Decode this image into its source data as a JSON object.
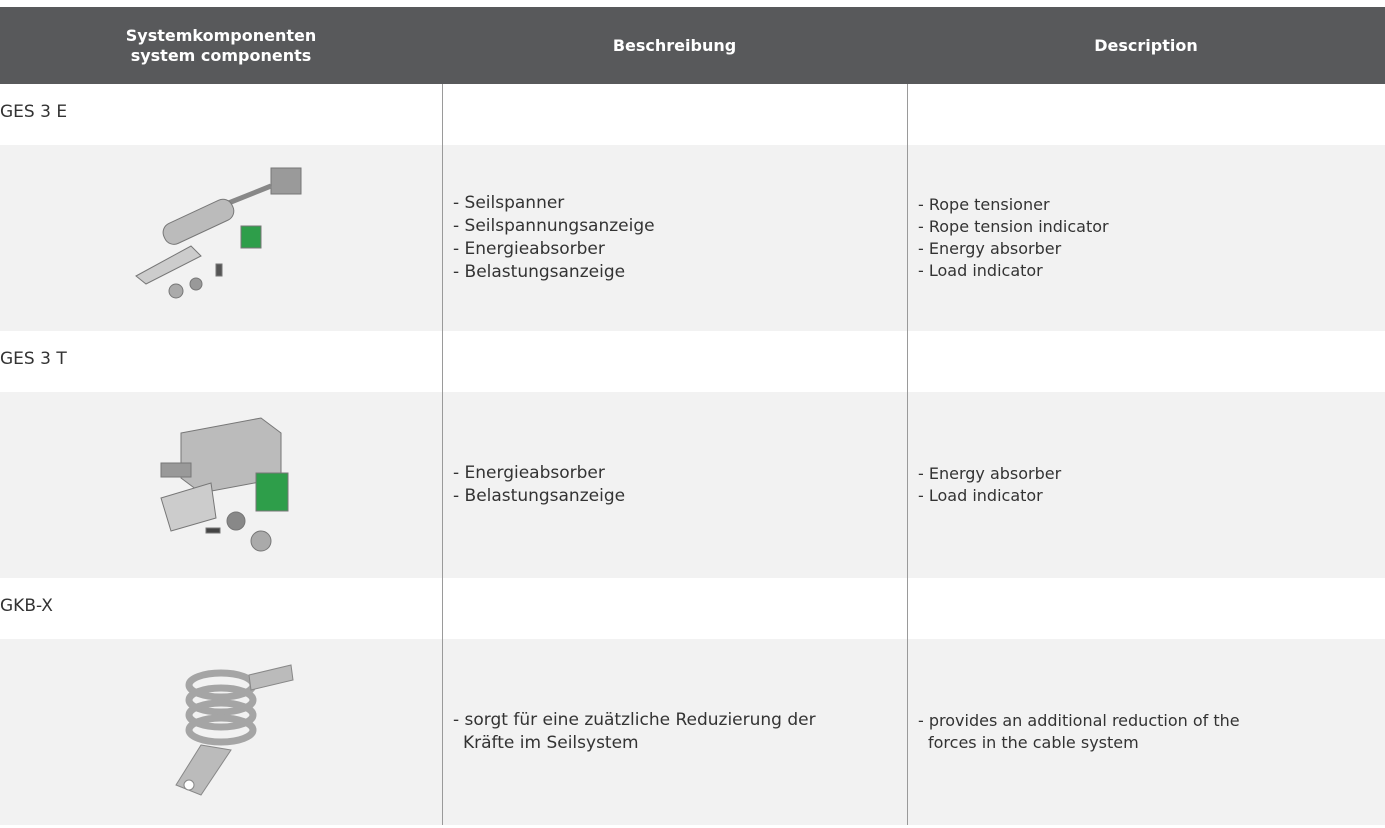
{
  "table": {
    "header": {
      "col1": [
        "Systemkomponenten",
        "system components"
      ],
      "col2": "Beschreibung",
      "col3": "Description"
    },
    "rows": [
      {
        "name": "GES 3 E",
        "beschreibung": [
          "- Seilspanner",
          "- Seilspannungsanzeige",
          "- Energieabsorber",
          "- Belastungsanzeige"
        ],
        "description": [
          "- Rope tensioner",
          "- Rope tension indicator",
          "- Energy absorber",
          "- Load indicator"
        ]
      },
      {
        "name": "GES 3 T",
        "beschreibung": [
          "- Energieabsorber",
          "- Belastungsanzeige"
        ],
        "description": [
          "- Energy absorber",
          "- Load indicator"
        ]
      },
      {
        "name": "GKB-X",
        "beschreibung": [
          "- sorgt für eine zuätzliche Reduzierung der",
          "Kräfte im Seilsystem"
        ],
        "description": [
          "- provides an additional reduction of the",
          "forces in the cable system"
        ]
      }
    ]
  }
}
